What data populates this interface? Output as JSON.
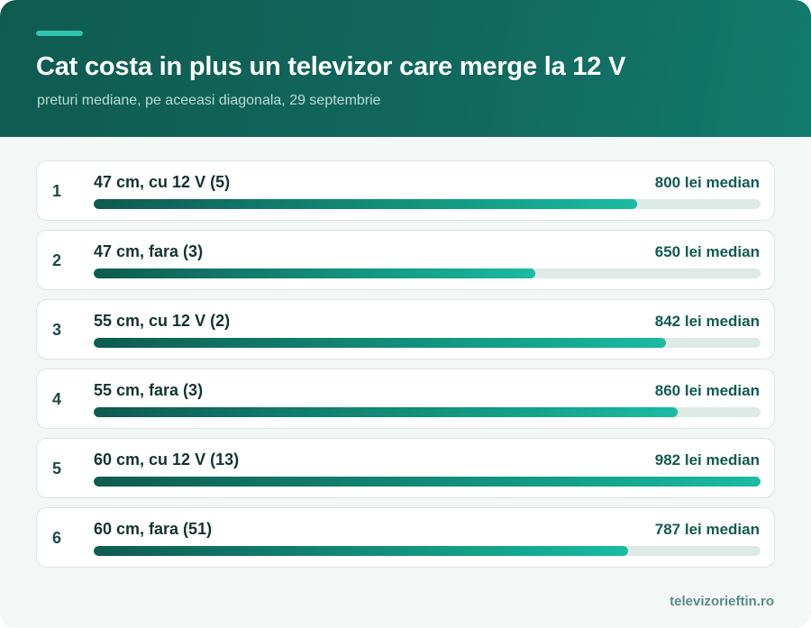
{
  "header": {
    "title": "Cat costa in plus un televizor care merge la 12 V",
    "subtitle": "preturi mediane, pe aceeasi diagonala, 29 septembrie"
  },
  "footer": {
    "brand": "televizorieftin.ro"
  },
  "colors": {
    "header_bg": "#11685d",
    "accent": "#2ec4ad",
    "bar_start": "#0f5b50",
    "bar_end": "#1bbba3",
    "track": "#dfe9e6"
  },
  "chart_data": {
    "type": "bar",
    "orientation": "horizontal",
    "title": "Cat costa in plus un televizor care merge la 12 V",
    "subtitle": "preturi mediane, pe aceeasi diagonala, 29 septembrie",
    "xlim": [
      0,
      982
    ],
    "ranks": [
      "1",
      "2",
      "3",
      "4",
      "5",
      "6"
    ],
    "categories": [
      "47 cm, cu 12 V (5)",
      "47 cm, fara (3)",
      "55 cm, cu 12 V (2)",
      "55 cm, fara (3)",
      "60 cm, cu 12 V (13)",
      "60 cm, fara (51)"
    ],
    "values": [
      800,
      650,
      842,
      860,
      982,
      787
    ],
    "value_labels": [
      "800 lei median",
      "650 lei median",
      "842 lei median",
      "860 lei median",
      "982 lei median",
      "787 lei median"
    ]
  }
}
